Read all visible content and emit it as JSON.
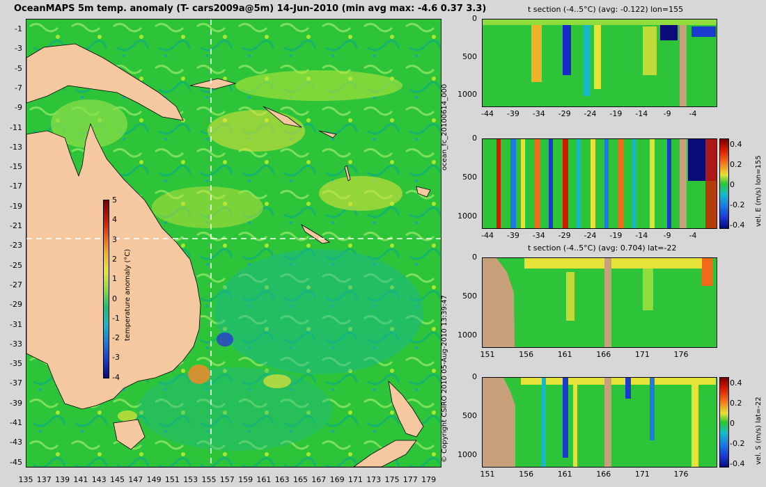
{
  "main_title": "OceanMAPS 5m temp. anomaly (T- cars2009a@5m) 14-Jun-2010 (min avg max: -4.6 0.37 3.3)",
  "map": {
    "lat_labels": [
      "-1",
      "-3",
      "-5",
      "-7",
      "-9",
      "-11",
      "-13",
      "-15",
      "-17",
      "-19",
      "-21",
      "-23",
      "-25",
      "-27",
      "-29",
      "-31",
      "-33",
      "-35",
      "-37",
      "-39",
      "-41",
      "-43",
      "-45"
    ],
    "lon_labels": [
      "135",
      "137",
      "139",
      "141",
      "143",
      "145",
      "147",
      "149",
      "151",
      "153",
      "155",
      "157",
      "159",
      "161",
      "163",
      "165",
      "167",
      "169",
      "171",
      "173",
      "175",
      "177",
      "179"
    ],
    "section_lon": 155,
    "section_lat": -22,
    "colors": {
      "ocean": "#2ec43a",
      "land": "#f5c8a0",
      "coast": "#000000"
    }
  },
  "map_colorbar": {
    "label": "temperature anomaly (°C)",
    "ticks": [
      "5",
      "4",
      "3",
      "2",
      "1",
      "0",
      "-1",
      "-2",
      "-3",
      "-4"
    ]
  },
  "copyright": "© Copyright CSIRO 2010   05-Aug-2010 13:39:47",
  "run_label": "ocean_fc_20100614_000",
  "sections": [
    {
      "title": "t section (-4..5°C) (avg: -0.122) lon=155",
      "y_ticks": [
        "0",
        "500",
        "1000"
      ],
      "x_ticks": [
        "-44",
        "-39",
        "-34",
        "-29",
        "-24",
        "-19",
        "-14",
        "-9",
        "-4"
      ]
    },
    {
      "title": "",
      "y_ticks": [
        "0",
        "500",
        "1000"
      ],
      "x_ticks": [
        "-44",
        "-39",
        "-34",
        "-29",
        "-24",
        "-19",
        "-14",
        "-9",
        "-4"
      ],
      "colorbar_label": "vel. E (m/s) lon=155",
      "colorbar_ticks": [
        "0.4",
        "0.2",
        "0",
        "-0.2",
        "-0.4"
      ]
    },
    {
      "title": "t section (-4..5°C) (avg: 0.704) lat=-22",
      "y_ticks": [
        "0",
        "500",
        "1000"
      ],
      "x_ticks": [
        "151",
        "156",
        "161",
        "166",
        "171",
        "176"
      ]
    },
    {
      "title": "",
      "y_ticks": [
        "0",
        "500",
        "1000"
      ],
      "x_ticks": [
        "151",
        "156",
        "161",
        "166",
        "171",
        "176"
      ],
      "colorbar_label": "vel. S (m/s) lat=-22",
      "colorbar_ticks": [
        "0.4",
        "0.2",
        "0",
        "-0.2",
        "-0.4"
      ]
    }
  ]
}
